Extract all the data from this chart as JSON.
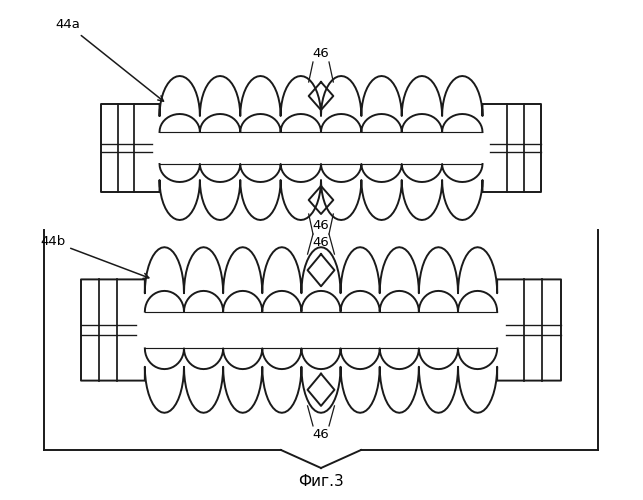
{
  "title": "Фиг.3",
  "label_44a": "44a",
  "label_44b": "44b",
  "label_46": "46",
  "bg_color": "#ffffff",
  "line_color": "#1a1a1a",
  "line_width": 1.4,
  "fig_width": 6.43,
  "fig_height": 5.0,
  "dpi": 100
}
